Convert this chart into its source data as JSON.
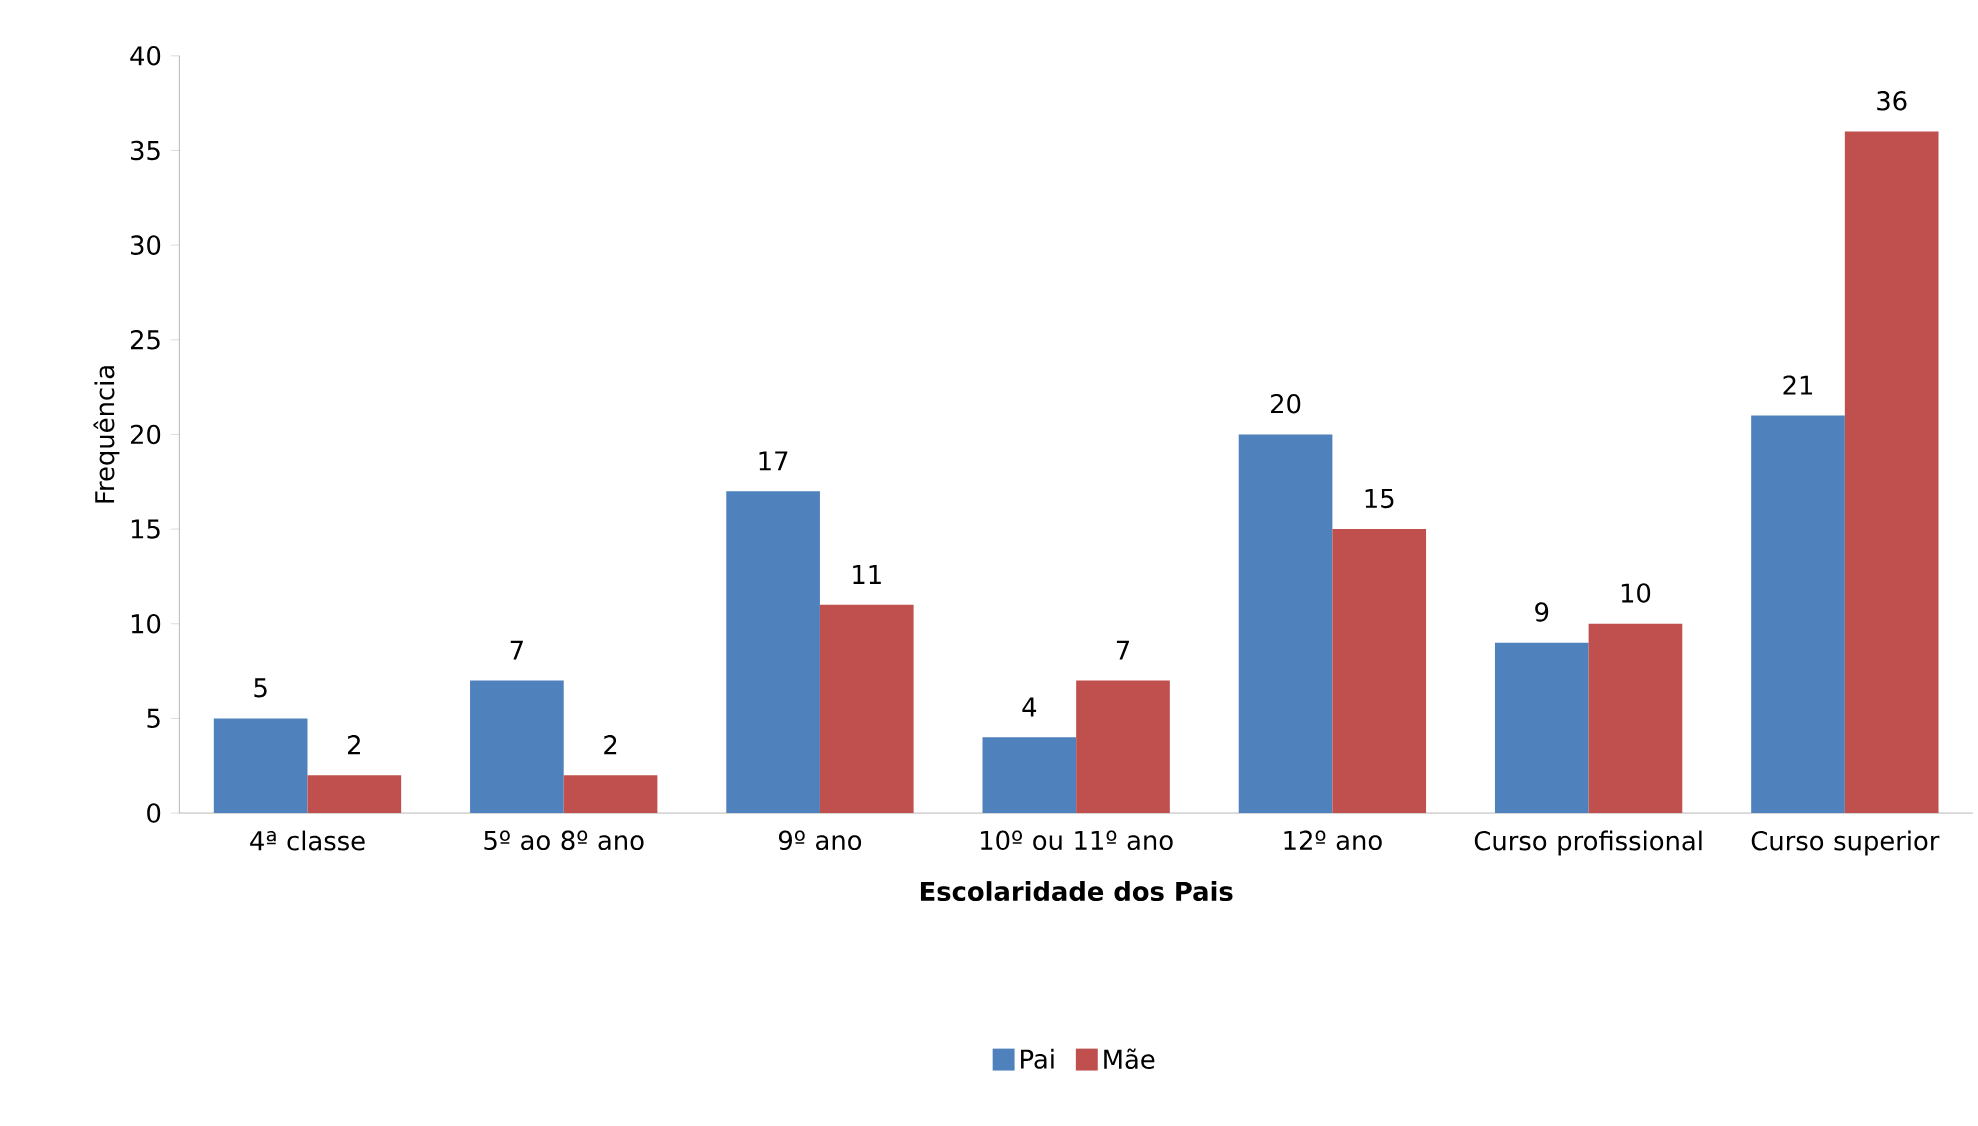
{
  "chart_data": {
    "type": "bar",
    "xlabel": "Escolaridade dos Pais",
    "ylabel": "Frequência",
    "categories": [
      "4ª classe",
      "5º ao 8º ano",
      "9º ano",
      "10º ou 11º ano",
      "12º ano",
      "Curso profissional",
      "Curso superior"
    ],
    "series": [
      {
        "name": "Pai",
        "color": "#4f81bd",
        "values": [
          5,
          7,
          17,
          4,
          20,
          9,
          21
        ]
      },
      {
        "name": "Mãe",
        "color": "#c0504d",
        "values": [
          2,
          2,
          11,
          7,
          15,
          10,
          36
        ]
      }
    ],
    "ylim": [
      0,
      40
    ],
    "yticks": [
      0,
      5,
      10,
      15,
      20,
      25,
      30,
      35,
      40
    ],
    "data_labels": true,
    "legend": "bottom",
    "grid": false
  }
}
